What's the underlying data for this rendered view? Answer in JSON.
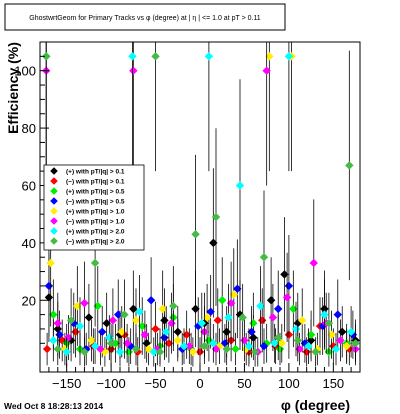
{
  "footer": "Wed Oct  8 18:28:13 2014",
  "chart_data": {
    "type": "scatter",
    "title": "GhostwrtGeom for Primary Tracks vs φ (degree) at | η | <= 1.0 at pT > 0.11",
    "xlabel": "φ (degree)",
    "ylabel": "Efficiency (%)",
    "xlim": [
      -180,
      180
    ],
    "ylim": [
      -5,
      110
    ],
    "xticks": [
      -150,
      -100,
      -50,
      0,
      50,
      100,
      150
    ],
    "xtick_labels": [
      "−150",
      "−100",
      "−50",
      "0",
      "50",
      "100",
      "150"
    ],
    "yticks": [
      20,
      40,
      60,
      80,
      100
    ],
    "grid": false,
    "legend_position": "center-left",
    "series": [
      {
        "name": "(+) with pT/|q| > 0.1",
        "color": "#000000",
        "points": [
          [
            -170,
            21
          ],
          [
            -160,
            10
          ],
          [
            -145,
            6
          ],
          [
            -125,
            14
          ],
          [
            -105,
            12
          ],
          [
            -90,
            8
          ],
          [
            -75,
            17
          ],
          [
            -60,
            5
          ],
          [
            -40,
            13
          ],
          [
            -25,
            9
          ],
          [
            -5,
            17
          ],
          [
            5,
            12
          ],
          [
            15,
            40
          ],
          [
            30,
            9
          ],
          [
            45,
            15
          ],
          [
            60,
            7
          ],
          [
            80,
            20
          ],
          [
            95,
            29
          ],
          [
            110,
            12
          ],
          [
            125,
            6
          ],
          [
            140,
            17
          ],
          [
            160,
            9
          ],
          [
            175,
            6
          ]
        ]
      },
      {
        "name": "(−) with pT/|q| > 0.1",
        "color": "#ff0000",
        "points": [
          [
            -172,
            3
          ],
          [
            -155,
            6
          ],
          [
            -140,
            9
          ],
          [
            -120,
            4
          ],
          [
            -100,
            3
          ],
          [
            -85,
            8
          ],
          [
            -70,
            2
          ],
          [
            -50,
            10
          ],
          [
            -35,
            5
          ],
          [
            -15,
            8
          ],
          [
            0,
            2
          ],
          [
            20,
            13
          ],
          [
            35,
            6
          ],
          [
            55,
            2
          ],
          [
            70,
            13
          ],
          [
            85,
            4
          ],
          [
            100,
            8
          ],
          [
            120,
            2
          ],
          [
            135,
            11
          ],
          [
            150,
            4
          ],
          [
            168,
            3
          ]
        ]
      },
      {
        "name": "(+) with pT/|q| > 0.5",
        "color": "#00ee00",
        "points": [
          [
            -173,
            105
          ],
          [
            -165,
            15
          ],
          [
            -150,
            5
          ],
          [
            -135,
            3
          ],
          [
            -115,
            18
          ],
          [
            -95,
            5
          ],
          [
            -80,
            2
          ],
          [
            -65,
            11
          ],
          [
            -45,
            4
          ],
          [
            -30,
            14
          ],
          [
            -10,
            3
          ],
          [
            10,
            6
          ],
          [
            25,
            20
          ],
          [
            40,
            3
          ],
          [
            60,
            12
          ],
          [
            75,
            5
          ],
          [
            90,
            3
          ],
          [
            105,
            17
          ],
          [
            125,
            8
          ],
          [
            145,
            2
          ],
          [
            165,
            5
          ]
        ]
      },
      {
        "name": "(−) with pT/|q| > 0.5",
        "color": "#0000ff",
        "points": [
          [
            -170,
            25
          ],
          [
            -158,
            8
          ],
          [
            -142,
            12
          ],
          [
            -128,
            3
          ],
          [
            -110,
            9
          ],
          [
            -92,
            15
          ],
          [
            -78,
            4
          ],
          [
            -55,
            20
          ],
          [
            -40,
            7
          ],
          [
            -20,
            3
          ],
          [
            -2,
            11
          ],
          [
            12,
            16
          ],
          [
            28,
            5
          ],
          [
            42,
            24
          ],
          [
            58,
            9
          ],
          [
            72,
            4
          ],
          [
            88,
            17
          ],
          [
            100,
            25
          ],
          [
            118,
            5
          ],
          [
            138,
            11
          ],
          [
            155,
            15
          ],
          [
            172,
            8
          ]
        ]
      },
      {
        "name": "(+) with pT/|q| > 1.0",
        "color": "#ffee00",
        "points": [
          [
            -168,
            33
          ],
          [
            -152,
            3
          ],
          [
            -138,
            18
          ],
          [
            -122,
            6
          ],
          [
            -107,
            2
          ],
          [
            -88,
            9
          ],
          [
            -72,
            13
          ],
          [
            -58,
            3
          ],
          [
            -42,
            17
          ],
          [
            -25,
            6
          ],
          [
            -8,
            2
          ],
          [
            8,
            14
          ],
          [
            22,
            4
          ],
          [
            38,
            22
          ],
          [
            52,
            3
          ],
          [
            78,
            105
          ],
          [
            92,
            5
          ],
          [
            103,
            105
          ],
          [
            115,
            13
          ],
          [
            132,
            3
          ],
          [
            148,
            8
          ],
          [
            165,
            4
          ]
        ]
      },
      {
        "name": "(−) with pT/|q| > 1.0",
        "color": "#ff00ff",
        "points": [
          [
            -173,
            100
          ],
          [
            -160,
            12
          ],
          [
            -148,
            7
          ],
          [
            -130,
            19
          ],
          [
            -112,
            3
          ],
          [
            -98,
            13
          ],
          [
            -82,
            5
          ],
          [
            -75,
            100
          ],
          [
            -62,
            8
          ],
          [
            -48,
            3
          ],
          [
            -32,
            12
          ],
          [
            -12,
            4
          ],
          [
            5,
            9
          ],
          [
            18,
            3
          ],
          [
            35,
            19
          ],
          [
            50,
            6
          ],
          [
            65,
            2
          ],
          [
            75,
            100
          ],
          [
            82,
            14
          ],
          [
            98,
            21
          ],
          [
            112,
            3
          ],
          [
            128,
            33
          ],
          [
            142,
            12
          ],
          [
            158,
            6
          ],
          [
            175,
            3
          ]
        ]
      },
      {
        "name": "(+) with pT/|q| > 2.0",
        "color": "#00ffff",
        "points": [
          [
            -165,
            6
          ],
          [
            -150,
            2
          ],
          [
            -135,
            11
          ],
          [
            -118,
            4
          ],
          [
            -102,
            7
          ],
          [
            -90,
            2
          ],
          [
            -76,
            105
          ],
          [
            -68,
            16
          ],
          [
            -52,
            2
          ],
          [
            -38,
            9
          ],
          [
            -18,
            4
          ],
          [
            10,
            105
          ],
          [
            2,
            12
          ],
          [
            15,
            5
          ],
          [
            32,
            14
          ],
          [
            45,
            60
          ],
          [
            55,
            4
          ],
          [
            68,
            18
          ],
          [
            84,
            5
          ],
          [
            100,
            105
          ],
          [
            108,
            10
          ],
          [
            122,
            4
          ],
          [
            140,
            15
          ],
          [
            153,
            3
          ],
          [
            170,
            9
          ]
        ]
      },
      {
        "name": "(−) with pT/|q| > 2.0",
        "color": "#44bb44",
        "points": [
          [
            -173,
            105
          ],
          [
            -160,
            3
          ],
          [
            -145,
            13
          ],
          [
            -130,
            2
          ],
          [
            -118,
            33
          ],
          [
            -100,
            5
          ],
          [
            -85,
            15
          ],
          [
            -72,
            3
          ],
          [
            -50,
            105
          ],
          [
            -45,
            2
          ],
          [
            -30,
            18
          ],
          [
            -5,
            43
          ],
          [
            5,
            4
          ],
          [
            18,
            49
          ],
          [
            30,
            3
          ],
          [
            48,
            14
          ],
          [
            62,
            2
          ],
          [
            72,
            35
          ],
          [
            88,
            7
          ],
          [
            110,
            6
          ],
          [
            130,
            2
          ],
          [
            145,
            12
          ],
          [
            168,
            67
          ],
          [
            175,
            5
          ]
        ]
      }
    ]
  }
}
